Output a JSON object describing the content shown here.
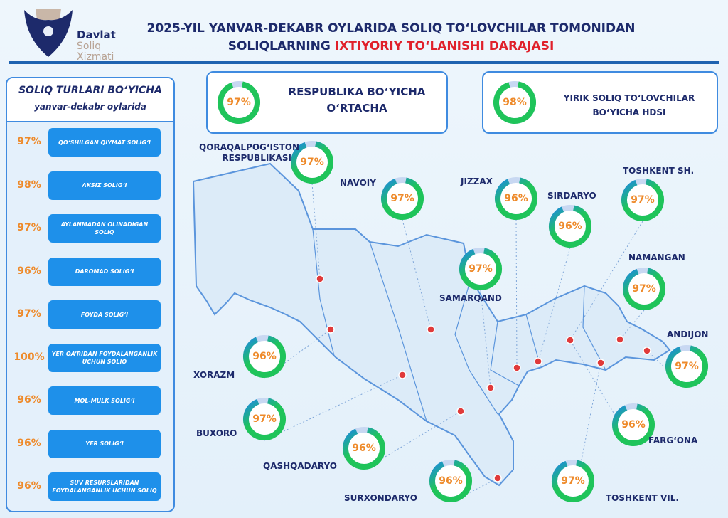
{
  "logo": {
    "line1": "Davlat",
    "line2": "Soliq",
    "line3": "Xizmati"
  },
  "title": {
    "line1": "2025-YIL YANVAR-DEKABR OYLARIDA SOLIQ TO‘LOVCHILAR TOMONIDAN",
    "line2_plain": "SOLIQLARNING ",
    "line2_highlight": "IXTIYORIY TO‘LANISHI DARAJASI"
  },
  "colors": {
    "navy": "#1d2a6b",
    "accent_red": "#e0202a",
    "button_blue": "#1e90ea",
    "percent_orange": "#ee8a2a",
    "ring_green": "#1fc45a",
    "ring_blue": "#1e88e5",
    "marker_red": "#e03a3a"
  },
  "sidebar": {
    "heading": "SOLIQ TURLARI BO‘YICHA",
    "subheading": "yanvar-dekabr oylarida",
    "items": [
      {
        "value": "97%",
        "label": "QO‘SHILGAN QIYMAT SOLIG‘I"
      },
      {
        "value": "98%",
        "label": "AKSIZ SOLIG‘I"
      },
      {
        "value": "97%",
        "label": "AYLANMADAN OLINADIGAN SOLIQ"
      },
      {
        "value": "96%",
        "label": "DAROMAD SOLIG‘I"
      },
      {
        "value": "97%",
        "label": "FOYDA SOLIG‘I"
      },
      {
        "value": "100%",
        "label": "YER QA’RIDAN FOYDALANGANLIK UCHUN SOLIQ"
      },
      {
        "value": "96%",
        "label": "MOL-MULK SOLIG‘I"
      },
      {
        "value": "96%",
        "label": "YER SOLIG‘I"
      },
      {
        "value": "96%",
        "label": "SUV RESURSLARIDAN FOYDALANGANLIK UCHUN SOLIQ"
      }
    ]
  },
  "summary": [
    {
      "value": "97%",
      "percent": 97,
      "label": "RESPUBLIKA BO‘YICHA O‘RTACHA"
    },
    {
      "value": "98%",
      "percent": 98,
      "label": "YIRIK SOLIQ TO‘LOVCHILAR BO‘YICHA HDSI"
    }
  ],
  "regions": [
    {
      "name": "QORAQALPOG‘ISTON RESPUBLIKASI",
      "value": "97%",
      "percent": 97
    },
    {
      "name": "NAVOIY",
      "value": "97%",
      "percent": 97
    },
    {
      "name": "JIZZAX",
      "value": "96%",
      "percent": 96
    },
    {
      "name": "SIRDARYO",
      "value": "96%",
      "percent": 96
    },
    {
      "name": "TOSHKENT SH.",
      "value": "97%",
      "percent": 97
    },
    {
      "name": "SAMARQAND",
      "value": "97%",
      "percent": 97
    },
    {
      "name": "NAMANGAN",
      "value": "97%",
      "percent": 97
    },
    {
      "name": "ANDIJON",
      "value": "97%",
      "percent": 97
    },
    {
      "name": "XORAZM",
      "value": "96%",
      "percent": 96
    },
    {
      "name": "BUXORO",
      "value": "97%",
      "percent": 97
    },
    {
      "name": "QASHQADARYO",
      "value": "96%",
      "percent": 96
    },
    {
      "name": "SURXONDARYO",
      "value": "96%",
      "percent": 96
    },
    {
      "name": "TOSHKENT VIL.",
      "value": "97%",
      "percent": 97
    },
    {
      "name": "FARG‘ONA",
      "value": "96%",
      "percent": 96
    }
  ]
}
